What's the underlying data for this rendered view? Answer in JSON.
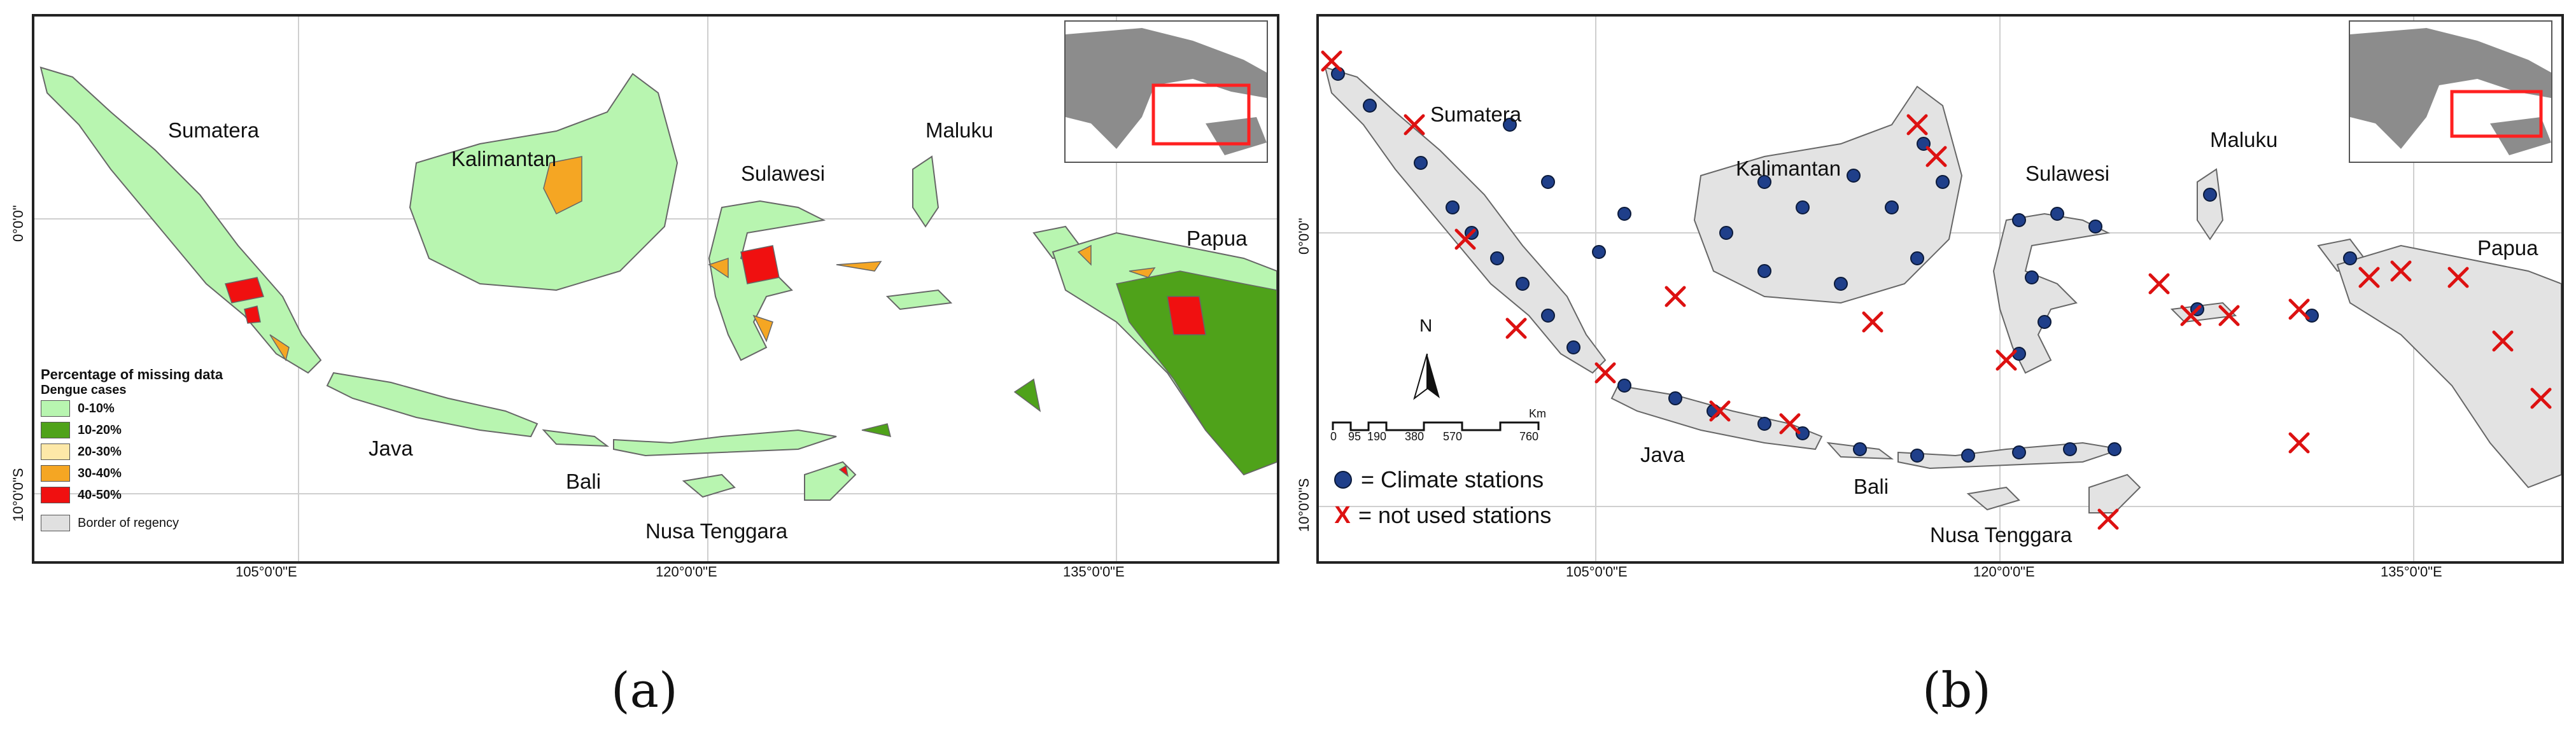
{
  "panels": [
    {
      "id": "a",
      "caption": "(a)",
      "regions": [
        "Sumatera",
        "Kalimantan",
        "Sulawesi",
        "Maluku",
        "Papua",
        "Java",
        "Bali",
        "Nusa Tenggara"
      ],
      "x_ticks": [
        "105°0'0\"E",
        "120°0'0\"E",
        "135°0'0\"E"
      ],
      "y_ticks": [
        "0°0'0\"",
        "10°0'0\"S"
      ],
      "legend": {
        "title": "Percentage of missing data",
        "subtitle": "Dengue cases",
        "items": [
          {
            "label": "0-10%",
            "color": "#b8f5b0"
          },
          {
            "label": "10-20%",
            "color": "#4fa21a"
          },
          {
            "label": "20-30%",
            "color": "#fde8a8"
          },
          {
            "label": "30-40%",
            "color": "#f5a623"
          },
          {
            "label": "40-50%",
            "color": "#f01010"
          }
        ],
        "border_label": "Border of regency",
        "border_color": "#e0e0e0"
      }
    },
    {
      "id": "b",
      "caption": "(b)",
      "regions": [
        "Sumatera",
        "Kalimantan",
        "Sulawesi",
        "Maluku",
        "Papua",
        "Java",
        "Bali",
        "Nusa Tenggara"
      ],
      "x_ticks": [
        "105°0'0\"E",
        "120°0'0\"E",
        "135°0'0\"E"
      ],
      "y_ticks": [
        "0°0'0\"",
        "10°0'0\"S"
      ],
      "north_label": "N",
      "scale_unit": "Km",
      "scale_ticks": [
        "0",
        "95",
        "190",
        "380",
        "570",
        "760"
      ],
      "legend": [
        {
          "symbol": "dot",
          "label": "= Climate stations"
        },
        {
          "symbol": "X",
          "label": "= not used stations"
        }
      ]
    }
  ]
}
